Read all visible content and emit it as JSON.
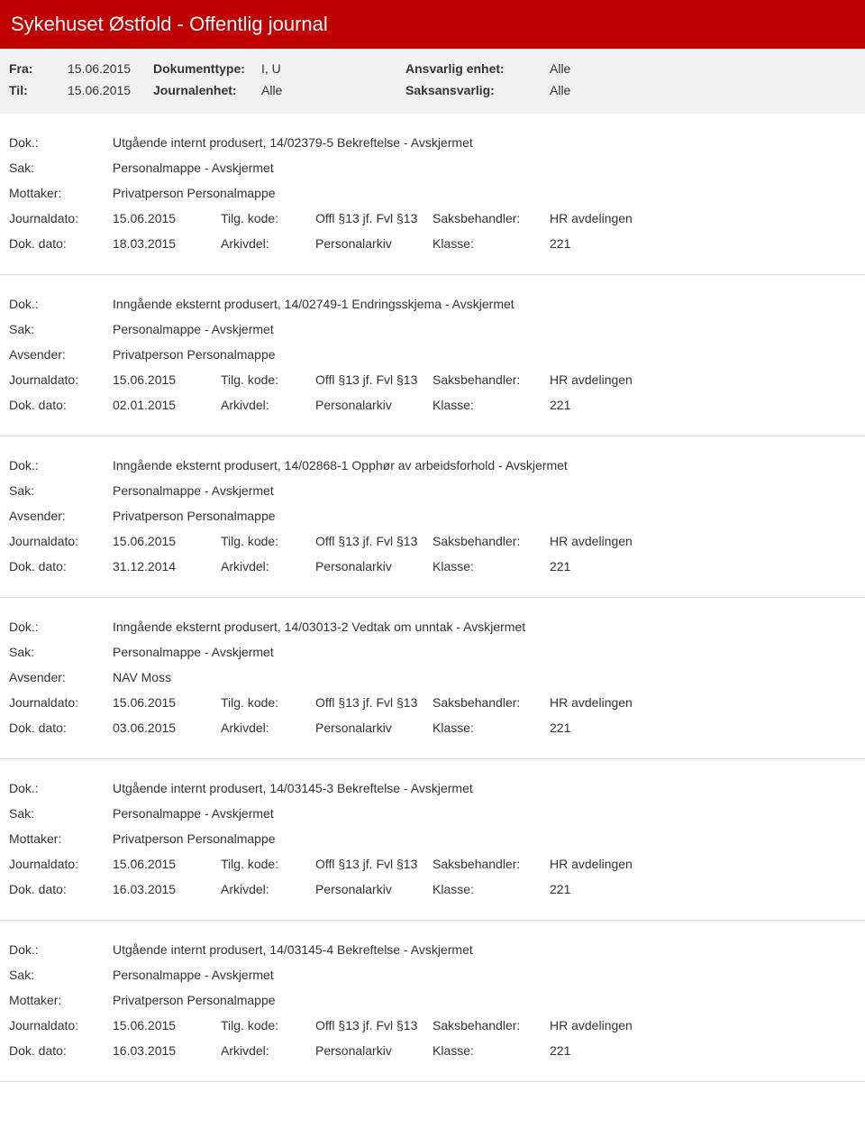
{
  "header": {
    "title": "Sykehuset Østfold - Offentlig journal",
    "background_color": "#c00000",
    "text_color": "#ffffff"
  },
  "meta": {
    "fra_label": "Fra:",
    "fra_value": "15.06.2015",
    "til_label": "Til:",
    "til_value": "15.06.2015",
    "doktype_label": "Dokumenttype:",
    "doktype_value": "I, U",
    "journalenhet_label": "Journalenhet:",
    "journalenhet_value": "Alle",
    "ansvarlig_label": "Ansvarlig enhet:",
    "ansvarlig_value": "Alle",
    "saksansvarlig_label": "Saksansvarlig:",
    "saksansvarlig_value": "Alle",
    "background_color": "#f2f2f2"
  },
  "labels": {
    "dok": "Dok.:",
    "sak": "Sak:",
    "mottaker": "Mottaker:",
    "avsender": "Avsender:",
    "journaldato": "Journaldato:",
    "dokdato": "Dok. dato:",
    "tilgkode": "Tilg. kode:",
    "arkivdel": "Arkivdel:",
    "saksbehandler": "Saksbehandler:",
    "klasse": "Klasse:"
  },
  "entries": [
    {
      "dok": "Utgående internt produsert, 14/02379-5 Bekreftelse - Avskjermet",
      "sak": "Personalmappe - Avskjermet",
      "party_label": "Mottaker:",
      "party_value": "Privatperson Personalmappe",
      "journaldato": "15.06.2015",
      "tilgkode": "Offl §13 jf. Fvl §13",
      "saksbehandler": "HR avdelingen",
      "dokdato": "18.03.2015",
      "arkivdel": "Personalarkiv",
      "klasse": "221"
    },
    {
      "dok": "Inngående eksternt produsert, 14/02749-1 Endringsskjema - Avskjermet",
      "sak": "Personalmappe - Avskjermet",
      "party_label": "Avsender:",
      "party_value": "Privatperson Personalmappe",
      "journaldato": "15.06.2015",
      "tilgkode": "Offl §13 jf. Fvl §13",
      "saksbehandler": "HR avdelingen",
      "dokdato": "02.01.2015",
      "arkivdel": "Personalarkiv",
      "klasse": "221"
    },
    {
      "dok": "Inngående eksternt produsert, 14/02868-1 Opphør av arbeidsforhold - Avskjermet",
      "sak": "Personalmappe - Avskjermet",
      "party_label": "Avsender:",
      "party_value": "Privatperson Personalmappe",
      "journaldato": "15.06.2015",
      "tilgkode": "Offl §13 jf. Fvl §13",
      "saksbehandler": "HR avdelingen",
      "dokdato": "31.12.2014",
      "arkivdel": "Personalarkiv",
      "klasse": "221"
    },
    {
      "dok": "Inngående eksternt produsert, 14/03013-2 Vedtak om unntak - Avskjermet",
      "sak": "Personalmappe - Avskjermet",
      "party_label": "Avsender:",
      "party_value": "NAV Moss",
      "journaldato": "15.06.2015",
      "tilgkode": "Offl §13 jf. Fvl §13",
      "saksbehandler": "HR avdelingen",
      "dokdato": "03.06.2015",
      "arkivdel": "Personalarkiv",
      "klasse": "221"
    },
    {
      "dok": "Utgående internt produsert, 14/03145-3 Bekreftelse - Avskjermet",
      "sak": "Personalmappe - Avskjermet",
      "party_label": "Mottaker:",
      "party_value": "Privatperson Personalmappe",
      "journaldato": "15.06.2015",
      "tilgkode": "Offl §13 jf. Fvl §13",
      "saksbehandler": "HR avdelingen",
      "dokdato": "16.03.2015",
      "arkivdel": "Personalarkiv",
      "klasse": "221"
    },
    {
      "dok": "Utgående internt produsert, 14/03145-4 Bekreftelse - Avskjermet",
      "sak": "Personalmappe - Avskjermet",
      "party_label": "Mottaker:",
      "party_value": "Privatperson Personalmappe",
      "journaldato": "15.06.2015",
      "tilgkode": "Offl §13 jf. Fvl §13",
      "saksbehandler": "HR avdelingen",
      "dokdato": "16.03.2015",
      "arkivdel": "Personalarkiv",
      "klasse": "221"
    }
  ]
}
